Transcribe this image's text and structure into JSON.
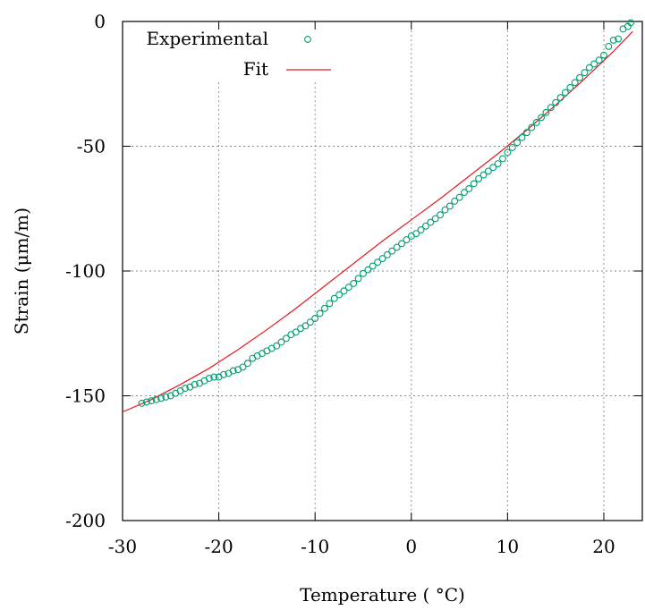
{
  "chart_data": {
    "type": "scatter",
    "title": "",
    "xlabel": "Temperature ( °C)",
    "ylabel": "Strain (μm/m)",
    "xlim": [
      -30,
      24
    ],
    "ylim": [
      -200,
      0
    ],
    "xticks": [
      -30,
      -20,
      -10,
      0,
      10,
      20
    ],
    "yticks": [
      0,
      -50,
      -100,
      -150,
      -200
    ],
    "x_tick_labels": [
      "-30",
      "-20",
      "-10",
      "0",
      "10",
      "20"
    ],
    "y_tick_labels": [
      "0",
      "-50",
      "-100",
      "-150",
      "-200"
    ],
    "grid": true,
    "legend_position": "top-left",
    "series": [
      {
        "name": "Experimental",
        "kind": "scatter",
        "marker": "open-circle",
        "color": "#009e73",
        "x": [
          -28,
          -27.5,
          -27,
          -26.5,
          -26,
          -25.5,
          -25,
          -24.5,
          -24,
          -23.5,
          -23,
          -22.5,
          -22,
          -21.5,
          -21,
          -20.5,
          -20,
          -19.5,
          -19,
          -18.5,
          -18,
          -17.5,
          -17,
          -16.5,
          -16,
          -15.5,
          -15,
          -14.5,
          -14,
          -13.5,
          -13,
          -12.5,
          -12,
          -11.5,
          -11,
          -10.5,
          -10,
          -9.5,
          -9,
          -8.5,
          -8,
          -7.5,
          -7,
          -6.5,
          -6,
          -5.5,
          -5,
          -4.5,
          -4,
          -3.5,
          -3,
          -2.5,
          -2,
          -1.5,
          -1,
          -0.5,
          0,
          0.5,
          1,
          1.5,
          2,
          2.5,
          3,
          3.5,
          4,
          4.5,
          5,
          5.5,
          6,
          6.5,
          7,
          7.5,
          8,
          8.5,
          9,
          9.5,
          10,
          10.5,
          11,
          11.5,
          12,
          12.5,
          13,
          13.5,
          14,
          14.5,
          15,
          15.5,
          16,
          16.5,
          17,
          17.5,
          18,
          18.5,
          19,
          19.5,
          20,
          20.5,
          21,
          21.5,
          22,
          22.5,
          22.8
        ],
        "y": [
          -153,
          -152.5,
          -152,
          -151.5,
          -151,
          -150.5,
          -150,
          -149,
          -148,
          -147,
          -146.5,
          -145.5,
          -145,
          -144,
          -143,
          -142.5,
          -142.5,
          -141.5,
          -141,
          -140,
          -139.5,
          -138.5,
          -137,
          -135,
          -134,
          -133,
          -132,
          -131,
          -130,
          -128.5,
          -127,
          -125.5,
          -124.5,
          -123,
          -122,
          -120.5,
          -119,
          -117,
          -115,
          -113,
          -111,
          -109.5,
          -108,
          -106.5,
          -105,
          -103,
          -101,
          -99.5,
          -98,
          -96.5,
          -95,
          -93.5,
          -92,
          -90.5,
          -89,
          -87.5,
          -86,
          -85,
          -83.5,
          -82,
          -80.5,
          -79,
          -77.5,
          -75.5,
          -74,
          -72,
          -70.5,
          -68.5,
          -67,
          -65,
          -63,
          -61.5,
          -60,
          -58.5,
          -57,
          -55,
          -52.5,
          -50.5,
          -48.5,
          -46.5,
          -44.5,
          -42.5,
          -40.5,
          -38.5,
          -36.5,
          -34.5,
          -32.5,
          -30.5,
          -28.5,
          -26.5,
          -24.5,
          -22.5,
          -20.5,
          -18.5,
          -17,
          -15.5,
          -13.5,
          -10,
          -7.5,
          -7,
          -3,
          -2,
          -0.5
        ]
      },
      {
        "name": "Fit",
        "kind": "line",
        "color": "#e41a1c",
        "x": [
          -30,
          -27,
          -24,
          -21,
          -18,
          -15,
          -12,
          -9,
          -6,
          -3,
          0,
          3,
          6,
          9,
          12,
          15,
          18,
          21,
          23
        ],
        "y": [
          -156.5,
          -151.5,
          -145.5,
          -139,
          -131.5,
          -123.5,
          -115,
          -106,
          -97,
          -88,
          -79.5,
          -71,
          -62,
          -53,
          -43.5,
          -33.5,
          -23,
          -12,
          -4
        ]
      }
    ]
  }
}
